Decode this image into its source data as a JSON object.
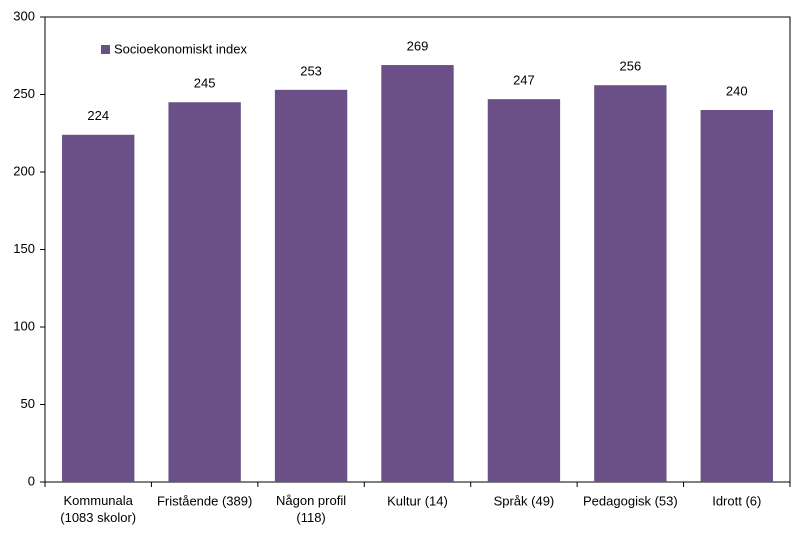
{
  "chart_data": {
    "type": "bar",
    "categories": [
      "Kommunala\n(1083 skolor)",
      "Fristående (389)",
      "Någon profil\n(118)",
      "Kultur (14)",
      "Språk (49)",
      "Pedagogisk (53)",
      "Idrott (6)"
    ],
    "series": [
      {
        "name": "Socioekonomiskt index",
        "color": "#6a5087",
        "values": [
          224,
          245,
          253,
          269,
          247,
          256,
          240
        ]
      }
    ],
    "ylim": [
      0,
      300
    ],
    "yticks": [
      0,
      50,
      100,
      150,
      200,
      250,
      300
    ],
    "legend": "top-left"
  }
}
